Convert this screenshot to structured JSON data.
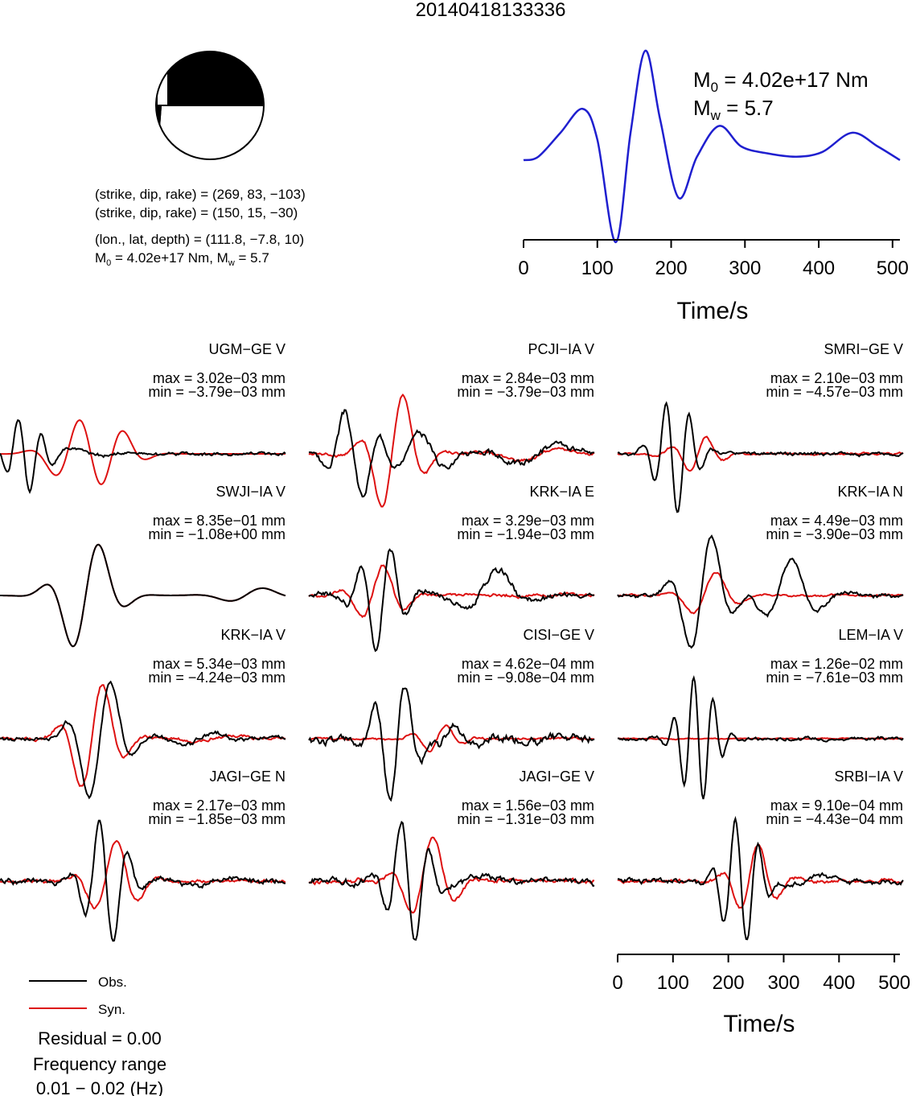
{
  "title": "20140418133336",
  "mechanism": {
    "lines": [
      "(strike, dip, rake) = (269, 83, −103)",
      "(strike, dip, rake) = (150, 15, −30)",
      "(lon., lat, depth) = (111.8, −7.8, 10)"
    ],
    "moment_line_prefix": "M",
    "moment_line_sub0": "0",
    "moment_line_mid": " = 4.02e+17 Nm, M",
    "moment_line_subw": "w",
    "moment_line_end": " = 5.7",
    "fill_color": "#000000"
  },
  "stf": {
    "m0_label": "M",
    "m0_sub": "0",
    "m0_value": " = 4.02e+17 Nm",
    "mw_label": "M",
    "mw_sub": "w",
    "mw_value": " = 5.7",
    "color": "#1f1fcf"
  },
  "legend": {
    "obs": "Obs.",
    "syn": "Syn.",
    "residual": "Residual = 0.00",
    "freq_title": "Frequency range",
    "freq_range": "0.01 − 0.02 (Hz)"
  },
  "colors": {
    "obs": "#000000",
    "syn": "#dd1111"
  },
  "chart_data": [
    {
      "type": "line",
      "name": "source-time-function",
      "x": [
        0,
        20,
        50,
        80,
        100,
        125,
        145,
        165,
        185,
        210,
        235,
        265,
        295,
        330,
        370,
        405,
        445,
        480,
        510
      ],
      "y": [
        0.0,
        0.05,
        0.4,
        0.75,
        0.3,
        -1.2,
        0.4,
        1.6,
        0.6,
        -0.55,
        0.05,
        0.5,
        0.2,
        0.1,
        0.05,
        0.12,
        0.4,
        0.2,
        0.0
      ],
      "xlabel": "Time/s",
      "xlim": [
        0,
        510
      ],
      "xticks": [
        0,
        100,
        200,
        300,
        400,
        500
      ]
    },
    {
      "type": "line",
      "name": "waveform-fits",
      "xlabel": "Time/s",
      "xlim": [
        0,
        510
      ],
      "xticks": [
        0,
        100,
        200,
        300,
        400,
        500
      ],
      "stations": [
        {
          "name": "UGM−GE V",
          "max": "max = 3.02e−03 mm",
          "min": "min = −3.79e−03 mm",
          "obs": {
            "osc": [
              [
                0.09,
                2,
                0.55,
                -0.85
              ],
              [
                0.22,
                0.7,
                0.1,
                0.12
              ]
            ],
            "noise": 0.03,
            "seed": 1
          },
          "syn": {
            "osc": [
              [
                0.26,
                0.8,
                0.45,
                0.2
              ],
              [
                0.38,
                0.9,
                0.45,
                -0.07
              ]
            ],
            "noise": 0.0,
            "seed": 2
          }
        },
        {
          "name": "PCJI−IA V",
          "max": "max = 2.84e−03 mm",
          "min": "min = −3.79e−03 mm",
          "obs": {
            "osc": [
              [
                0.16,
                1.2,
                0.7,
                -0.95
              ],
              [
                0.4,
                0.8,
                0.3,
                0.6
              ],
              [
                0.8,
                0.5,
                0.18,
                0.0
              ]
            ],
            "noise": 0.06,
            "seed": 3
          },
          "syn": {
            "osc": [
              [
                0.3,
                1.0,
                0.95,
                0.1
              ],
              [
                0.78,
                0.5,
                0.12,
                -0.2
              ]
            ],
            "noise": 0.03,
            "seed": 4
          }
        },
        {
          "name": "SMRI−GE V",
          "max": "max = 2.10e−03 mm",
          "min": "min = −4.57e−03 mm",
          "obs": {
            "osc": [
              [
                0.2,
                2.0,
                0.85,
                -0.75
              ]
            ],
            "noise": 0.03,
            "seed": 5
          },
          "syn": {
            "osc": [
              [
                0.28,
                1.3,
                0.28,
                0.0
              ]
            ],
            "noise": 0.02,
            "seed": 6
          }
        },
        {
          "name": "SWJI−IA V",
          "max": "max = 8.35e−01 mm",
          "min": "min = −1.08e+00 mm",
          "obs": {
            "osc": [
              [
                0.3,
                0.8,
                0.9,
                0.0
              ],
              [
                0.88,
                0.6,
                0.12,
                0.15
              ]
            ],
            "noise": 0.0,
            "seed": 7
          },
          "syn": {
            "osc": [
              [
                0.3,
                0.8,
                0.9,
                0.0
              ],
              [
                0.88,
                0.6,
                0.12,
                0.15
              ]
            ],
            "noise": 0.0,
            "seed": 8
          }
        },
        {
          "name": "KRK−IA E",
          "max": "max = 3.29e−03 mm",
          "min": "min = −1.94e−03 mm",
          "obs": {
            "osc": [
              [
                0.25,
                1.5,
                0.85,
                -0.2
              ],
              [
                0.64,
                0.6,
                0.35,
                0.3
              ]
            ],
            "noise": 0.06,
            "seed": 9
          },
          "syn": {
            "osc": [
              [
                0.25,
                1.0,
                0.45,
                0.35
              ]
            ],
            "noise": 0.03,
            "seed": 10
          }
        },
        {
          "name": "KRK−IA N",
          "max": "max = 4.49e−03 mm",
          "min": "min = −3.90e−03 mm",
          "obs": {
            "osc": [
              [
                0.3,
                1.0,
                0.95,
                0.1
              ],
              [
                0.6,
                0.8,
                0.55,
                0.4
              ]
            ],
            "noise": 0.04,
            "seed": 11
          },
          "syn": {
            "osc": [
              [
                0.32,
                0.9,
                0.35,
                0.2
              ]
            ],
            "noise": 0.02,
            "seed": 12
          }
        },
        {
          "name": "KRK−IA V",
          "max": "max = 5.34e−03 mm",
          "min": "min = −4.24e−03 mm",
          "obs": {
            "osc": [
              [
                0.35,
                1.0,
                0.95,
                0.0
              ],
              [
                0.7,
                0.7,
                0.12,
                0.0
              ]
            ],
            "noise": 0.04,
            "seed": 13
          },
          "syn": {
            "osc": [
              [
                0.33,
                1.0,
                0.85,
                0.1
              ],
              [
                0.75,
                0.6,
                0.05,
                0.0
              ]
            ],
            "noise": 0.03,
            "seed": 14
          }
        },
        {
          "name": "CISI−GE V",
          "max": "max = 4.62e−04 mm",
          "min": "min = −9.08e−04 mm",
          "obs": {
            "osc": [
              [
                0.3,
                1.5,
                0.9,
                -0.2
              ],
              [
                0.5,
                1.0,
                0.2,
                0.3
              ],
              [
                0.85,
                0.5,
                0.05,
                0.0
              ]
            ],
            "noise": 0.08,
            "seed": 15
          },
          "syn": {
            "osc": [
              [
                0.45,
                1.3,
                0.2,
                0.0
              ]
            ],
            "noise": 0.02,
            "seed": 16
          }
        },
        {
          "name": "LEM−IA V",
          "max": "max = 1.26e−02 mm",
          "min": "min = −7.61e−03 mm",
          "obs": {
            "osc": [
              [
                0.28,
                2.4,
                0.95,
                0.9
              ]
            ],
            "noise": 0.03,
            "seed": 17
          },
          "syn": {
            "osc": [
              [
                0.4,
                0.8,
                0.0,
                0.0
              ]
            ],
            "noise": 0.01,
            "seed": 18
          }
        },
        {
          "name": "JAGI−GE N",
          "max": "max = 2.17e−03 mm",
          "min": "min = −1.85e−03 mm",
          "obs": {
            "osc": [
              [
                0.37,
                1.6,
                0.95,
                0.95
              ],
              [
                0.75,
                0.6,
                0.08,
                0.0
              ]
            ],
            "noise": 0.05,
            "seed": 19
          },
          "syn": {
            "osc": [
              [
                0.4,
                1.0,
                0.6,
                0.4
              ]
            ],
            "noise": 0.03,
            "seed": 20
          }
        },
        {
          "name": "JAGI−GE V",
          "max": "max = 1.56e−03 mm",
          "min": "min = −1.31e−03 mm",
          "obs": {
            "osc": [
              [
                0.35,
                1.6,
                0.95,
                -0.95
              ],
              [
                0.55,
                0.6,
                0.1,
                0.0
              ]
            ],
            "noise": 0.06,
            "seed": 21
          },
          "syn": {
            "osc": [
              [
                0.42,
                1.0,
                0.65,
                0.3
              ]
            ],
            "noise": 0.04,
            "seed": 22
          }
        },
        {
          "name": "SRBI−IA V",
          "max": "max = 9.10e−04 mm",
          "min": "min = −4.43e−04 mm",
          "obs": {
            "osc": [
              [
                0.43,
                2.0,
                0.95,
                0.95
              ],
              [
                0.65,
                0.5,
                0.12,
                0.0
              ]
            ],
            "noise": 0.05,
            "seed": 23
          },
          "syn": {
            "osc": [
              [
                0.48,
                1.2,
                0.55,
                0.3
              ]
            ],
            "noise": 0.03,
            "seed": 24
          }
        }
      ]
    }
  ]
}
